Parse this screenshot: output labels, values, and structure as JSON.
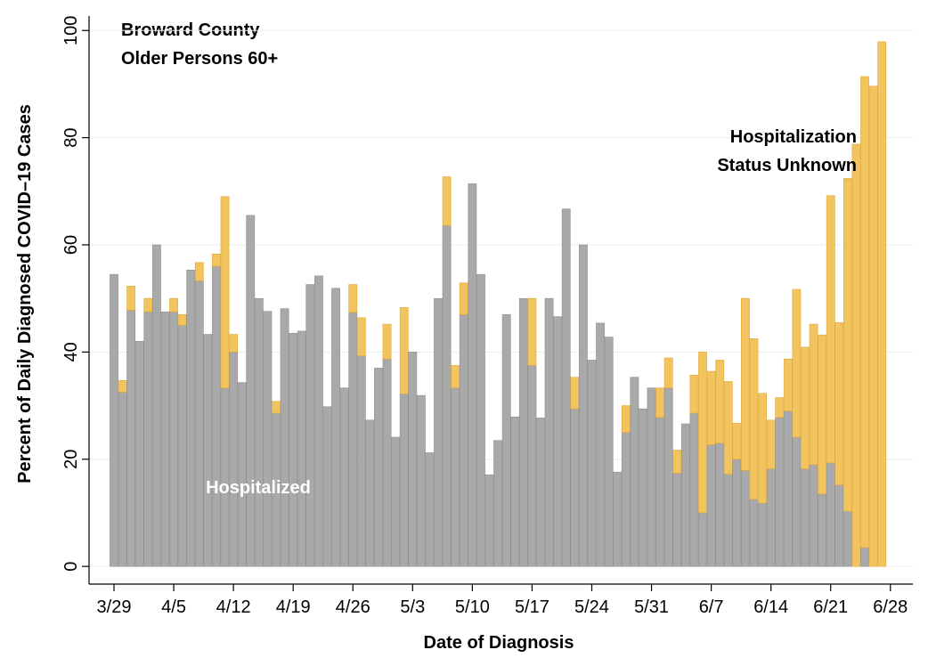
{
  "chart_data": {
    "type": "stacked-bar",
    "annotation": [
      "Broward County",
      "Older Persons 60+"
    ],
    "x_label": "Date of Diagnosis",
    "y_label": "Percent of Daily Diagnosed COVID–19 Cases",
    "categories": [
      "3/29",
      null,
      null,
      null,
      null,
      null,
      null,
      "4/5",
      null,
      null,
      null,
      null,
      null,
      null,
      "4/12",
      null,
      null,
      null,
      null,
      null,
      null,
      "4/19",
      null,
      null,
      null,
      null,
      null,
      null,
      "4/26",
      null,
      null,
      null,
      null,
      null,
      null,
      "5/3",
      null,
      null,
      null,
      null,
      null,
      null,
      "5/10",
      null,
      null,
      null,
      null,
      null,
      null,
      "5/17",
      null,
      null,
      null,
      null,
      null,
      null,
      "5/24",
      null,
      null,
      null,
      null,
      null,
      null,
      "5/31",
      null,
      null,
      null,
      null,
      null,
      null,
      "6/7",
      null,
      null,
      null,
      null,
      null,
      null,
      "6/14",
      null,
      null,
      null,
      null,
      null,
      null,
      "6/21",
      null,
      null,
      null,
      null,
      null,
      null,
      "6/28"
    ],
    "series": [
      {
        "name": "Hospitalized",
        "color": "#a9a9a9",
        "values": [
          54.5,
          32.5,
          47.8,
          42,
          47.5,
          60,
          47.5,
          47.5,
          45,
          55.3,
          53.3,
          43.3,
          56,
          33.3,
          40,
          34.3,
          65.5,
          50,
          47.6,
          28.6,
          48.1,
          43.5,
          43.9,
          52.6,
          54.2,
          29.8,
          51.9,
          33.3,
          47.4,
          39.3,
          27.3,
          37,
          38.7,
          24.1,
          32.2,
          40,
          31.9,
          21.2,
          50,
          63.6,
          33.3,
          47,
          71.4,
          54.5,
          17.1,
          23.5,
          47,
          27.9,
          50,
          37.5,
          27.7,
          50,
          46.6,
          66.7,
          29.4,
          60,
          38.5,
          45.4,
          42.8,
          17.6,
          25,
          35.3,
          29.4,
          33.3,
          27.8,
          33.3,
          17.4,
          26.6,
          28.6,
          10,
          22.7,
          23,
          17.2,
          20,
          17.9,
          12.5,
          11.8,
          18.2,
          27.8,
          29,
          24.1,
          18.2,
          19,
          13.5,
          19.3,
          15.2,
          10.3,
          0,
          3.5,
          0,
          0,
          null
        ]
      },
      {
        "name": [
          "Hospitalization",
          "Status Unknown"
        ],
        "color": "#f2c45f",
        "values": [
          0,
          2.2,
          4.5,
          0,
          2.5,
          0,
          0,
          2.5,
          2,
          0,
          3.4,
          0,
          2.3,
          35.7,
          3.3,
          0,
          0,
          0,
          0,
          2.2,
          0,
          0,
          0,
          0,
          0,
          0,
          0,
          0,
          5.2,
          7.1,
          0,
          0,
          6.5,
          0,
          16.1,
          0,
          0,
          0,
          0,
          9.1,
          4.2,
          5.9,
          0,
          0,
          0,
          0,
          0,
          0,
          0,
          12.5,
          0,
          0,
          0,
          0,
          5.9,
          0,
          0,
          0,
          0,
          0,
          5,
          0,
          0,
          0,
          5.5,
          5.6,
          4.3,
          0,
          7.1,
          30,
          13.7,
          15.5,
          17.3,
          6.7,
          32.1,
          30,
          20.5,
          9.1,
          3.7,
          9.7,
          27.6,
          22.7,
          26.2,
          29.7,
          49.9,
          30.3,
          62.1,
          78.8,
          87.9,
          89.6,
          97.9,
          null
        ]
      }
    ],
    "ylim": [
      -3.3,
      102.7
    ],
    "yticks": [
      0,
      20,
      40,
      60,
      80,
      100
    ],
    "grid": true
  }
}
